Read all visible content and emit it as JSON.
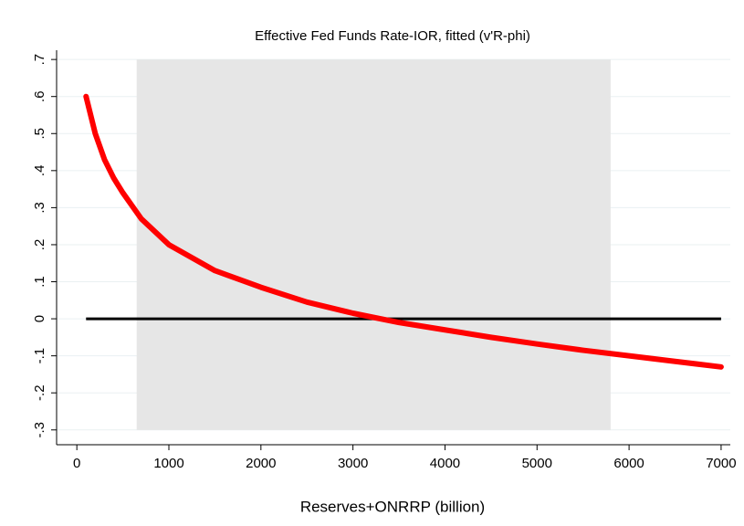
{
  "chart_data": {
    "type": "line",
    "title": "Effective Fed Funds Rate-IOR, fitted (v'R-phi)",
    "x_label": "Reserves+ONRRP (billion)",
    "x": [
      100,
      200,
      300,
      400,
      500,
      700,
      1000,
      1500,
      2000,
      2500,
      3000,
      3500,
      4000,
      4500,
      5000,
      5500,
      6000,
      6500,
      7000
    ],
    "series": [
      {
        "color": "#ff0000",
        "values": [
          0.6,
          0.5,
          0.43,
          0.38,
          0.34,
          0.27,
          0.2,
          0.13,
          0.085,
          0.045,
          0.015,
          -0.01,
          -0.03,
          -0.05,
          -0.068,
          -0.085,
          -0.1,
          -0.115,
          -0.13
        ]
      }
    ],
    "hline": {
      "y": 0,
      "x": [
        100,
        7000
      ],
      "color": "#000000"
    },
    "shaded_region": {
      "x": [
        650,
        5800
      ],
      "y": [
        -0.3,
        0.7
      ],
      "color": "#e6e6e6"
    },
    "xlim": [
      -220,
      7100
    ],
    "ylim": [
      -0.34,
      0.725
    ],
    "xticks": [
      0,
      1000,
      2000,
      3000,
      4000,
      5000,
      6000,
      7000
    ],
    "yticks": [
      {
        "value": -0.3,
        "label": "-.3"
      },
      {
        "value": -0.2,
        "label": "-.2"
      },
      {
        "value": -0.1,
        "label": "-.1"
      },
      0,
      {
        "value": 0.1,
        "label": ".1"
      },
      {
        "value": 0.2,
        "label": ".2"
      },
      {
        "value": 0.3,
        "label": ".3"
      },
      {
        "value": 0.4,
        "label": ".4"
      },
      {
        "value": 0.5,
        "label": ".5"
      },
      {
        "value": 0.6,
        "label": ".6"
      },
      {
        "value": 0.7,
        "label": ".7"
      }
    ],
    "grid": true
  }
}
